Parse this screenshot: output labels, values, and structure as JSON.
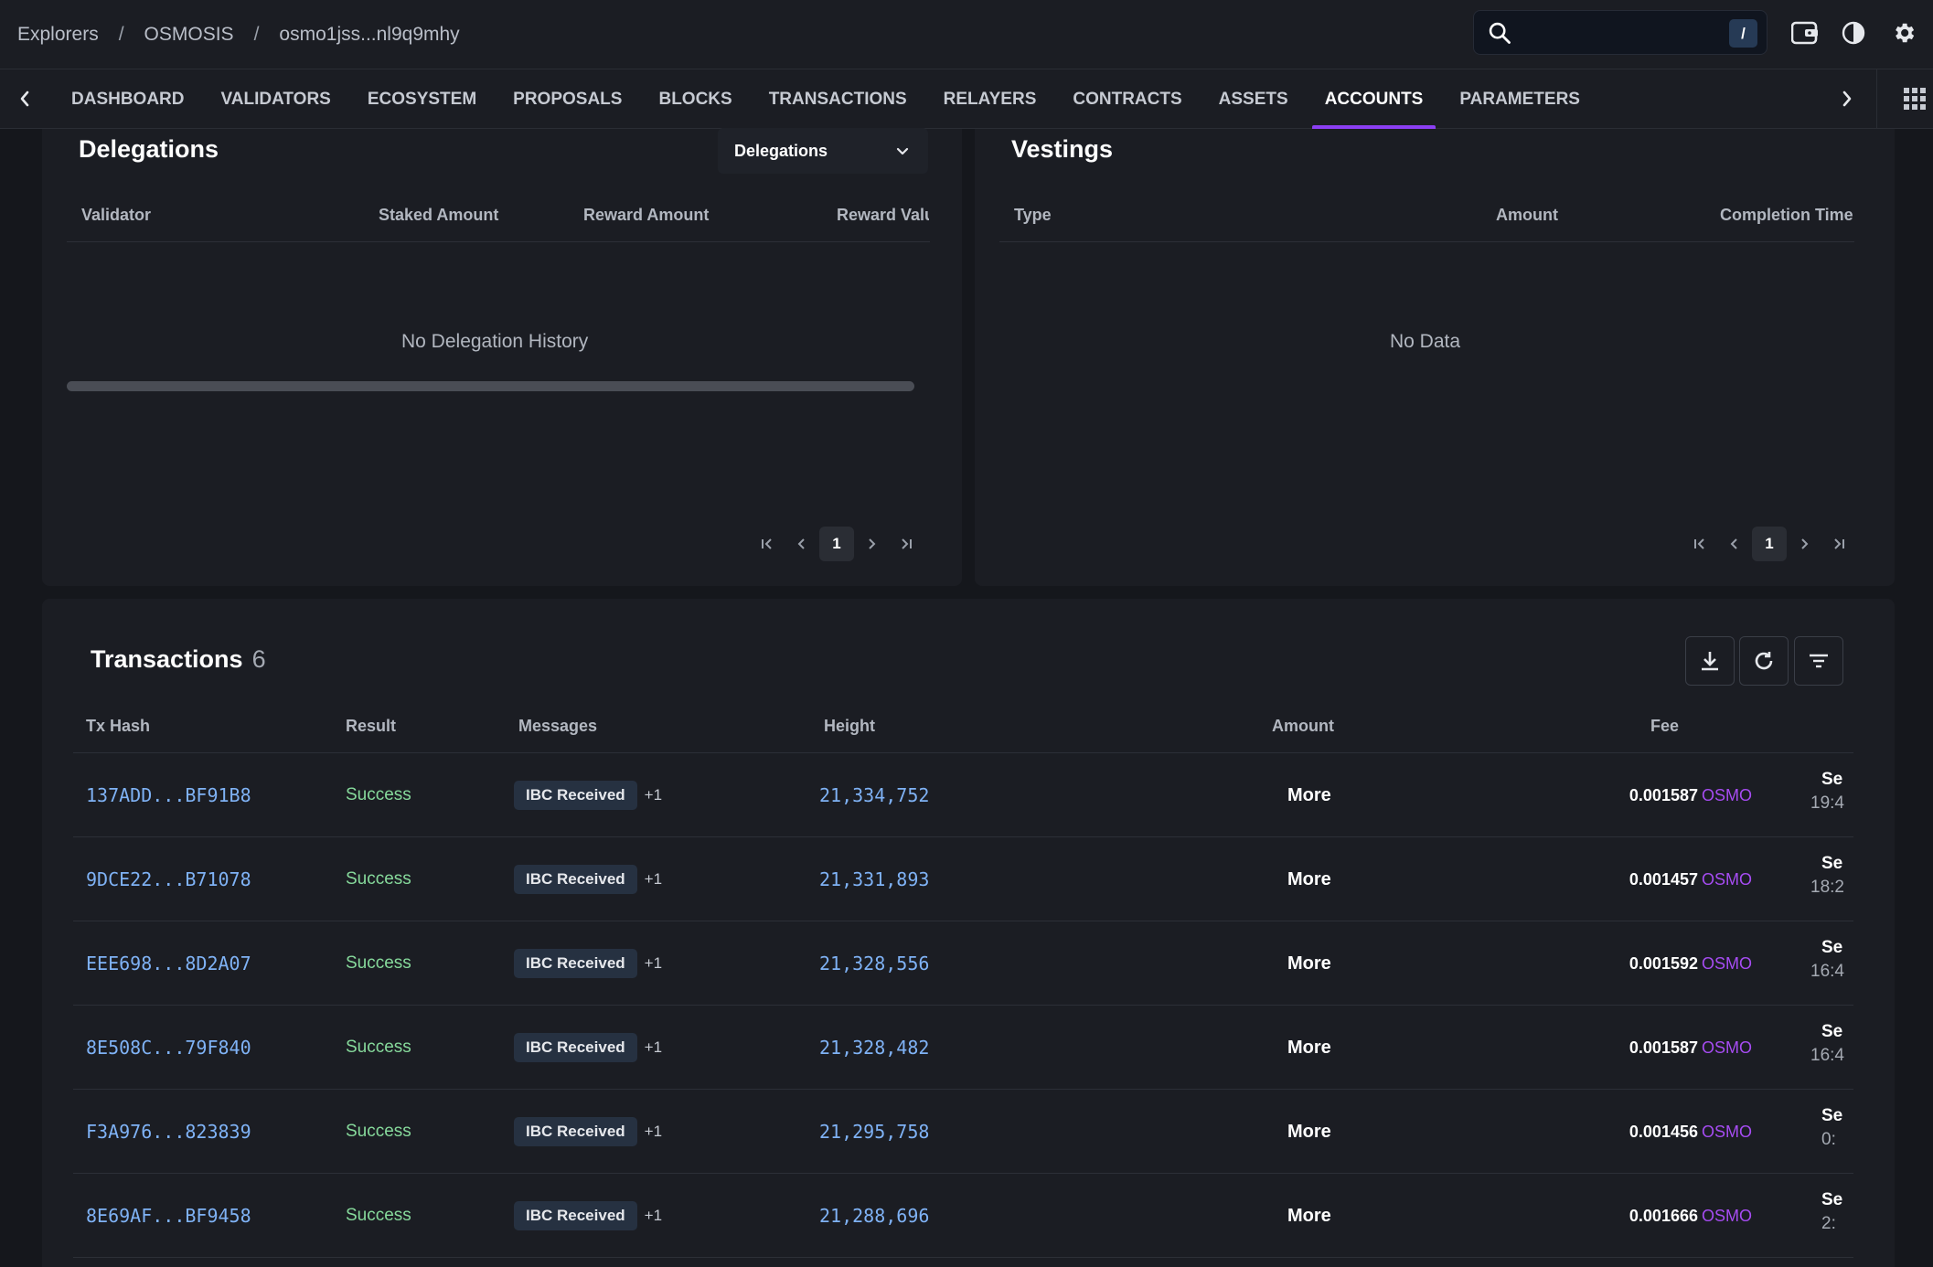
{
  "breadcrumb": [
    "Explorers",
    "OSMOSIS",
    "osmo1jss...nl9q9mhy"
  ],
  "search": {
    "value": "",
    "placeholder": "",
    "shortcut": "/"
  },
  "nav": {
    "tabs": [
      "DASHBOARD",
      "VALIDATORS",
      "ECOSYSTEM",
      "PROPOSALS",
      "BLOCKS",
      "TRANSACTIONS",
      "RELAYERS",
      "CONTRACTS",
      "ASSETS",
      "ACCOUNTS",
      "PARAMETERS"
    ],
    "active": "ACCOUNTS"
  },
  "delegations": {
    "title": "Delegations",
    "select_value": "Delegations",
    "columns": [
      "Validator",
      "Staked Amount",
      "Reward Amount",
      "Reward Valu"
    ],
    "empty": "No Delegation History",
    "page": "1"
  },
  "vestings": {
    "title": "Vestings",
    "columns": [
      "Type",
      "Amount",
      "Completion Time"
    ],
    "empty": "No Data",
    "page": "1"
  },
  "transactions": {
    "title": "Transactions",
    "count": "6",
    "columns": [
      "Tx Hash",
      "Result",
      "Messages",
      "Height",
      "Amount",
      "Fee"
    ],
    "rows": [
      {
        "hash": "137ADD...BF91B8",
        "result": "Success",
        "message": "IBC Received",
        "extra": "+1",
        "height": "21,334,752",
        "amount": "More",
        "fee": "0.001587",
        "denom": "OSMO",
        "time_a": "Se",
        "time_b": "19:4"
      },
      {
        "hash": "9DCE22...B71078",
        "result": "Success",
        "message": "IBC Received",
        "extra": "+1",
        "height": "21,331,893",
        "amount": "More",
        "fee": "0.001457",
        "denom": "OSMO",
        "time_a": "Se",
        "time_b": "18:2"
      },
      {
        "hash": "EEE698...8D2A07",
        "result": "Success",
        "message": "IBC Received",
        "extra": "+1",
        "height": "21,328,556",
        "amount": "More",
        "fee": "0.001592",
        "denom": "OSMO",
        "time_a": "Se",
        "time_b": "16:4"
      },
      {
        "hash": "8E508C...79F840",
        "result": "Success",
        "message": "IBC Received",
        "extra": "+1",
        "height": "21,328,482",
        "amount": "More",
        "fee": "0.001587",
        "denom": "OSMO",
        "time_a": "Se",
        "time_b": "16:4"
      },
      {
        "hash": "F3A976...823839",
        "result": "Success",
        "message": "IBC Received",
        "extra": "+1",
        "height": "21,295,758",
        "amount": "More",
        "fee": "0.001456",
        "denom": "OSMO",
        "time_a": "Se",
        "time_b": "0:"
      },
      {
        "hash": "8E69AF...BF9458",
        "result": "Success",
        "message": "IBC Received",
        "extra": "+1",
        "height": "21,288,696",
        "amount": "More",
        "fee": "0.001666",
        "denom": "OSMO",
        "time_a": "Se",
        "time_b": "2:"
      }
    ]
  },
  "icons": {
    "search": "search-icon",
    "wallet": "wallet-icon",
    "theme": "half-moon-icon",
    "settings": "gear-icon",
    "apps": "grid-icon",
    "download": "download-icon",
    "refresh": "refresh-icon",
    "filter": "filter-icon"
  },
  "colors": {
    "accent": "#8b3ff3",
    "link": "#7fb2f5",
    "success": "#86d99b",
    "denom": "#a64cf2",
    "background": "#15171c",
    "panel": "#1b1d23"
  }
}
